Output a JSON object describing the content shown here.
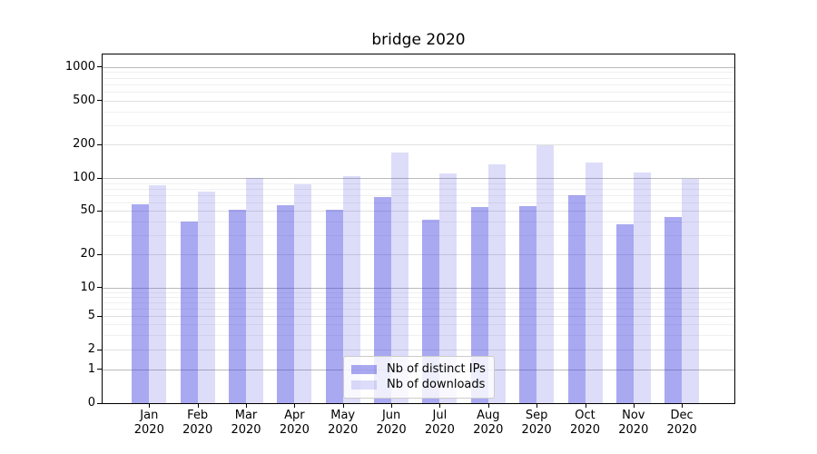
{
  "chart_data": {
    "type": "bar",
    "title": "bridge 2020",
    "categories": [
      "Jan",
      "Feb",
      "Mar",
      "Apr",
      "May",
      "Jun",
      "Jul",
      "Aug",
      "Sep",
      "Oct",
      "Nov",
      "Dec"
    ],
    "category_year": "2020",
    "series": [
      {
        "name": "Nb of distinct IPs",
        "color": "#3333dd",
        "alpha": 0.42,
        "values": [
          57,
          40,
          51,
          56,
          51,
          67,
          42,
          54,
          55,
          70,
          38,
          44
        ]
      },
      {
        "name": "Nb of downloads",
        "color": "#3333dd",
        "alpha": 0.17,
        "values": [
          86,
          75,
          100,
          88,
          104,
          170,
          110,
          133,
          197,
          137,
          112,
          99
        ]
      }
    ],
    "y_ticks": [
      0,
      1,
      2,
      5,
      10,
      20,
      50,
      100,
      200,
      500,
      1000
    ],
    "y_scale": "symlog",
    "ylim": [
      0,
      1300
    ],
    "xlabel": "",
    "ylabel": "",
    "grid": true,
    "legend_position": "lower center"
  }
}
